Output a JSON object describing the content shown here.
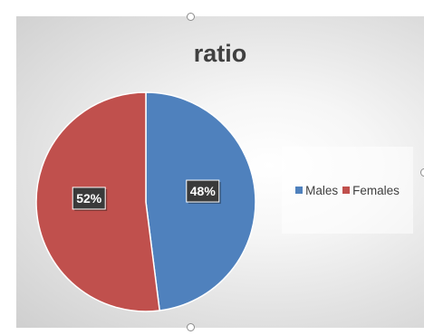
{
  "chart_data": {
    "type": "pie",
    "title": "ratio",
    "slices": [
      {
        "name": "Males",
        "value": 48,
        "label": "48%",
        "color": "#4f81bd"
      },
      {
        "name": "Females",
        "value": 52,
        "label": "52%",
        "color": "#c0504d"
      }
    ],
    "legend_position": "right"
  }
}
